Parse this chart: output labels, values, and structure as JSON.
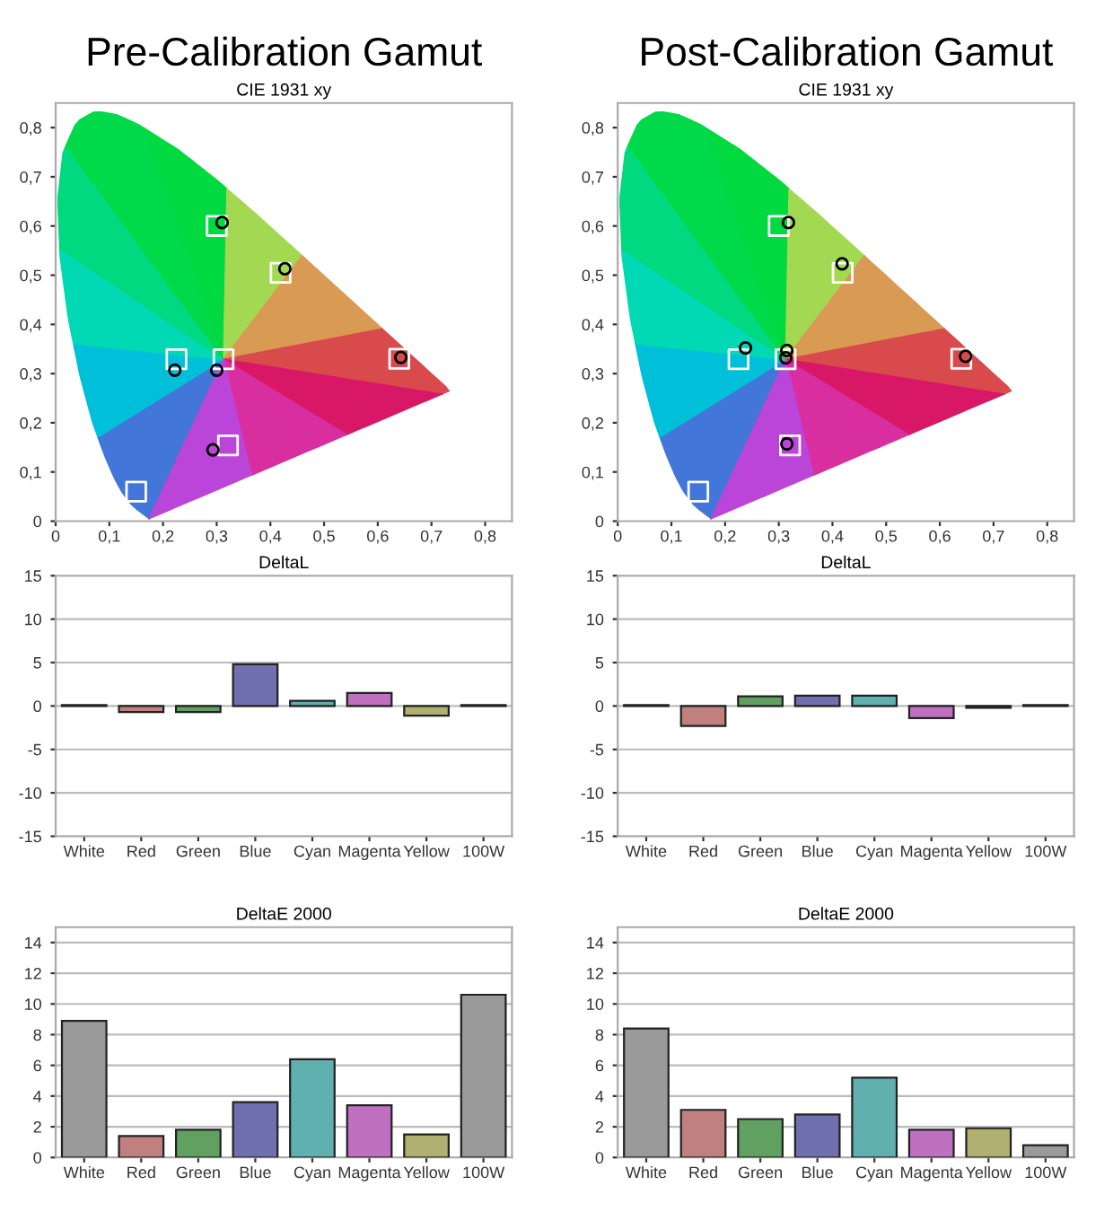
{
  "chart_data": [
    {
      "type": "scatter",
      "title": "Pre-Calibration Gamut",
      "subtitle": "CIE 1931 xy",
      "xlim": [
        0,
        0.85
      ],
      "ylim": [
        0,
        0.85
      ],
      "xticks": [
        0,
        {
          "value": 0.1,
          "label": "0,1"
        },
        {
          "value": 0.2,
          "label": "0,2"
        },
        {
          "value": 0.3,
          "label": "0,3"
        },
        {
          "value": 0.4,
          "label": "0,4"
        },
        {
          "value": 0.5,
          "label": "0,5"
        },
        {
          "value": 0.6,
          "label": "0,6"
        },
        {
          "value": 0.7,
          "label": "0,7"
        },
        {
          "value": 0.8,
          "label": "0,8"
        }
      ],
      "yticks": [
        0,
        {
          "value": 0.1,
          "label": "0,1"
        },
        {
          "value": 0.2,
          "label": "0,2"
        },
        {
          "value": 0.3,
          "label": "0,3"
        },
        {
          "value": 0.4,
          "label": "0,4"
        },
        {
          "value": 0.5,
          "label": "0,5"
        },
        {
          "value": 0.6,
          "label": "0,6"
        },
        {
          "value": 0.7,
          "label": "0,7"
        },
        {
          "value": 0.8,
          "label": "0,8"
        }
      ],
      "series": [
        {
          "color": "#ffffff",
          "marker": "square",
          "x": [
            0.64,
            0.3,
            0.15,
            0.3127,
            0.225,
            0.321,
            0.419
          ],
          "values": [
            0.33,
            0.6,
            0.06,
            0.329,
            0.329,
            0.154,
            0.505
          ]
        },
        {
          "color": "#000000",
          "marker": "circle",
          "x": [
            0.31,
            0.427,
            0.643,
            0.222,
            0.3,
            0.293
          ],
          "values": [
            0.607,
            0.513,
            0.333,
            0.307,
            0.307,
            0.145
          ]
        }
      ]
    },
    {
      "type": "scatter",
      "title": "Post-Calibration Gamut",
      "subtitle": "CIE 1931 xy",
      "xlim": [
        0,
        0.85
      ],
      "ylim": [
        0,
        0.85
      ],
      "xticks": [
        0,
        {
          "value": 0.1,
          "label": "0,1"
        },
        {
          "value": 0.2,
          "label": "0,2"
        },
        {
          "value": 0.3,
          "label": "0,3"
        },
        {
          "value": 0.4,
          "label": "0,4"
        },
        {
          "value": 0.5,
          "label": "0,5"
        },
        {
          "value": 0.6,
          "label": "0,6"
        },
        {
          "value": 0.7,
          "label": "0,7"
        },
        {
          "value": 0.8,
          "label": "0,8"
        }
      ],
      "yticks": [
        0,
        {
          "value": 0.1,
          "label": "0,1"
        },
        {
          "value": 0.2,
          "label": "0,2"
        },
        {
          "value": 0.3,
          "label": "0,3"
        },
        {
          "value": 0.4,
          "label": "0,4"
        },
        {
          "value": 0.5,
          "label": "0,5"
        },
        {
          "value": 0.6,
          "label": "0,6"
        },
        {
          "value": 0.7,
          "label": "0,7"
        },
        {
          "value": 0.8,
          "label": "0,8"
        }
      ],
      "series": [
        {
          "color": "#ffffff",
          "marker": "square",
          "x": [
            0.64,
            0.3,
            0.15,
            0.3127,
            0.225,
            0.321,
            0.419
          ],
          "values": [
            0.33,
            0.6,
            0.06,
            0.329,
            0.329,
            0.154,
            0.505
          ]
        },
        {
          "color": "#000000",
          "marker": "circle",
          "x": [
            0.318,
            0.418,
            0.648,
            0.238,
            0.315,
            0.313,
            0.315
          ],
          "values": [
            0.607,
            0.523,
            0.335,
            0.352,
            0.347,
            0.332,
            0.157
          ]
        }
      ]
    },
    {
      "type": "bar",
      "subtitle": "DeltaL",
      "categories": [
        "White",
        "Red",
        "Green",
        "Blue",
        "Cyan",
        "Magenta",
        "Yellow",
        "100W"
      ],
      "ylim": [
        -15,
        15
      ],
      "yticks": [
        -15,
        -10,
        -5,
        0,
        5,
        10,
        15
      ],
      "grid": "y",
      "values": [
        0.1,
        -0.7,
        -0.7,
        4.8,
        0.6,
        1.5,
        -1.1,
        0.1
      ],
      "colors": [
        "#9a9a9a",
        "#c08080",
        "#60a060",
        "#7070b0",
        "#60b0b0",
        "#c070c0",
        "#b0b070",
        "#9a9a9a"
      ]
    },
    {
      "type": "bar",
      "subtitle": "DeltaL",
      "categories": [
        "White",
        "Red",
        "Green",
        "Blue",
        "Cyan",
        "Magenta",
        "Yellow",
        "100W"
      ],
      "ylim": [
        -15,
        15
      ],
      "yticks": [
        -15,
        -10,
        -5,
        0,
        5,
        10,
        15
      ],
      "grid": "y",
      "values": [
        0.1,
        -2.3,
        1.1,
        1.2,
        1.2,
        -1.4,
        -0.2,
        0.1
      ],
      "colors": [
        "#9a9a9a",
        "#c08080",
        "#60a060",
        "#7070b0",
        "#60b0b0",
        "#c070c0",
        "#b0b070",
        "#9a9a9a"
      ]
    },
    {
      "type": "bar",
      "subtitle": "DeltaE 2000",
      "categories": [
        "White",
        "Red",
        "Green",
        "Blue",
        "Cyan",
        "Magenta",
        "Yellow",
        "100W"
      ],
      "ylim": [
        0,
        15
      ],
      "yticks": [
        0,
        2,
        4,
        6,
        8,
        10,
        12,
        14
      ],
      "grid": "y",
      "values": [
        8.9,
        1.4,
        1.8,
        3.6,
        6.4,
        3.4,
        1.5,
        10.6
      ],
      "colors": [
        "#9a9a9a",
        "#c08080",
        "#60a060",
        "#7070b0",
        "#60b0b0",
        "#c070c0",
        "#b0b070",
        "#9a9a9a"
      ]
    },
    {
      "type": "bar",
      "subtitle": "DeltaE 2000",
      "categories": [
        "White",
        "Red",
        "Green",
        "Blue",
        "Cyan",
        "Magenta",
        "Yellow",
        "100W"
      ],
      "ylim": [
        0,
        15
      ],
      "yticks": [
        0,
        2,
        4,
        6,
        8,
        10,
        12,
        14
      ],
      "grid": "y",
      "values": [
        8.4,
        3.1,
        2.5,
        2.8,
        5.2,
        1.8,
        1.9,
        0.8
      ],
      "colors": [
        "#9a9a9a",
        "#c08080",
        "#60a060",
        "#7070b0",
        "#60b0b0",
        "#c070c0",
        "#b0b070",
        "#9a9a9a"
      ]
    }
  ]
}
